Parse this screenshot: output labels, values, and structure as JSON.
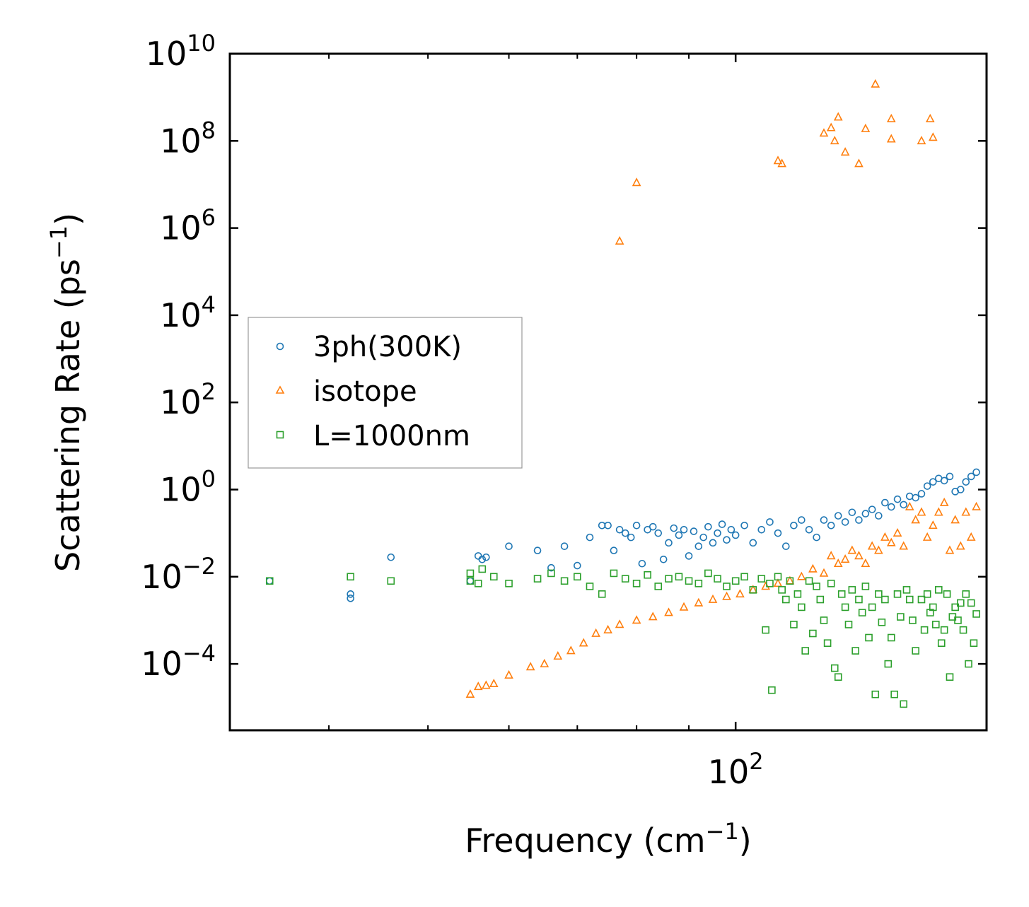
{
  "chart_data": {
    "type": "scatter",
    "title": "",
    "xlabel": "Frequency (cm",
    "xlabel_sup": "−1",
    "xlabel_tail": ")",
    "ylabel": "Scattering Rate (ps",
    "ylabel_sup": "−1",
    "ylabel_tail": ")",
    "xscale": "log",
    "yscale": "log",
    "xlim": [
      32,
      176
    ],
    "ylim": [
      3e-06,
      10000000000.0
    ],
    "x_major_ticks": [
      {
        "value": 100,
        "base": "10",
        "exp": "2"
      }
    ],
    "y_major_ticks": [
      {
        "value": 0.0001,
        "base": "10",
        "exp": "−4"
      },
      {
        "value": 0.01,
        "base": "10",
        "exp": "−2"
      },
      {
        "value": 1,
        "base": "10",
        "exp": "0"
      },
      {
        "value": 100,
        "base": "10",
        "exp": "2"
      },
      {
        "value": 10000.0,
        "base": "10",
        "exp": "4"
      },
      {
        "value": 1000000.0,
        "base": "10",
        "exp": "6"
      },
      {
        "value": 100000000.0,
        "base": "10",
        "exp": "8"
      },
      {
        "value": 10000000000.0,
        "base": "10",
        "exp": "10"
      }
    ],
    "legend_location": "center-left",
    "series": [
      {
        "name": "3ph(300K)",
        "marker": "circle",
        "color": "#1f77b4",
        "points": [
          [
            35,
            0.008
          ],
          [
            42,
            0.004
          ],
          [
            42,
            0.0032
          ],
          [
            46,
            0.028
          ],
          [
            55,
            0.008
          ],
          [
            56,
            0.03
          ],
          [
            56.5,
            0.025
          ],
          [
            57,
            0.028
          ],
          [
            60,
            0.05
          ],
          [
            64,
            0.04
          ],
          [
            66,
            0.016
          ],
          [
            68,
            0.05
          ],
          [
            70,
            0.018
          ],
          [
            72,
            0.08
          ],
          [
            74,
            0.15
          ],
          [
            75,
            0.15
          ],
          [
            76,
            0.04
          ],
          [
            77,
            0.12
          ],
          [
            78,
            0.1
          ],
          [
            79,
            0.08
          ],
          [
            80,
            0.15
          ],
          [
            81,
            0.02
          ],
          [
            82,
            0.12
          ],
          [
            83,
            0.14
          ],
          [
            84,
            0.1
          ],
          [
            85,
            0.025
          ],
          [
            86,
            0.06
          ],
          [
            87,
            0.13
          ],
          [
            88,
            0.09
          ],
          [
            89,
            0.12
          ],
          [
            90,
            0.03
          ],
          [
            91,
            0.11
          ],
          [
            92,
            0.05
          ],
          [
            93,
            0.08
          ],
          [
            94,
            0.14
          ],
          [
            95,
            0.06
          ],
          [
            96,
            0.1
          ],
          [
            97,
            0.16
          ],
          [
            98,
            0.07
          ],
          [
            99,
            0.12
          ],
          [
            100,
            0.09
          ],
          [
            102,
            0.15
          ],
          [
            104,
            0.06
          ],
          [
            106,
            0.12
          ],
          [
            108,
            0.18
          ],
          [
            110,
            0.1
          ],
          [
            112,
            0.05
          ],
          [
            114,
            0.15
          ],
          [
            116,
            0.2
          ],
          [
            118,
            0.12
          ],
          [
            120,
            0.08
          ],
          [
            122,
            0.2
          ],
          [
            124,
            0.15
          ],
          [
            126,
            0.25
          ],
          [
            128,
            0.18
          ],
          [
            130,
            0.3
          ],
          [
            132,
            0.2
          ],
          [
            134,
            0.28
          ],
          [
            136,
            0.35
          ],
          [
            138,
            0.25
          ],
          [
            140,
            0.5
          ],
          [
            142,
            0.4
          ],
          [
            144,
            0.6
          ],
          [
            146,
            0.45
          ],
          [
            148,
            0.7
          ],
          [
            150,
            0.65
          ],
          [
            152,
            0.8
          ],
          [
            154,
            1.2
          ],
          [
            156,
            1.5
          ],
          [
            158,
            1.8
          ],
          [
            160,
            1.6
          ],
          [
            162,
            2.0
          ],
          [
            164,
            0.9
          ],
          [
            166,
            1.0
          ],
          [
            168,
            1.5
          ],
          [
            170,
            2.0
          ],
          [
            172,
            2.5
          ]
        ]
      },
      {
        "name": "isotope",
        "marker": "triangle",
        "color": "#ff7f0e",
        "points": [
          [
            55,
            2e-05
          ],
          [
            56,
            3e-05
          ],
          [
            57,
            3.2e-05
          ],
          [
            58,
            3.5e-05
          ],
          [
            60,
            5.5e-05
          ],
          [
            63,
            8.5e-05
          ],
          [
            65,
            0.0001
          ],
          [
            67,
            0.00015
          ],
          [
            69,
            0.0002
          ],
          [
            71,
            0.0003
          ],
          [
            73,
            0.0005
          ],
          [
            75,
            0.0006
          ],
          [
            77,
            0.0008
          ],
          [
            80,
            0.001
          ],
          [
            83,
            0.0012
          ],
          [
            86,
            0.0015
          ],
          [
            89,
            0.002
          ],
          [
            92,
            0.0025
          ],
          [
            95,
            0.003
          ],
          [
            98,
            0.0035
          ],
          [
            101,
            0.004
          ],
          [
            104,
            0.005
          ],
          [
            107,
            0.006
          ],
          [
            110,
            0.007
          ],
          [
            113,
            0.008
          ],
          [
            116,
            0.01
          ],
          [
            119,
            0.015
          ],
          [
            122,
            0.012
          ],
          [
            124,
            0.03
          ],
          [
            126,
            0.02
          ],
          [
            128,
            0.025
          ],
          [
            130,
            0.04
          ],
          [
            132,
            0.03
          ],
          [
            134,
            0.02
          ],
          [
            136,
            0.05
          ],
          [
            138,
            0.04
          ],
          [
            140,
            0.08
          ],
          [
            142,
            0.06
          ],
          [
            144,
            0.1
          ],
          [
            146,
            0.05
          ],
          [
            148,
            0.4
          ],
          [
            150,
            0.2
          ],
          [
            152,
            0.3
          ],
          [
            154,
            0.08
          ],
          [
            156,
            0.15
          ],
          [
            158,
            0.3
          ],
          [
            160,
            0.5
          ],
          [
            162,
            0.04
          ],
          [
            164,
            0.2
          ],
          [
            166,
            0.05
          ],
          [
            168,
            0.3
          ],
          [
            170,
            0.08
          ],
          [
            172,
            0.4
          ],
          [
            77,
            500000
          ],
          [
            80,
            11000000
          ],
          [
            110,
            35000000
          ],
          [
            111,
            30000000
          ],
          [
            122,
            150000000
          ],
          [
            124,
            200000000
          ],
          [
            125,
            100000000
          ],
          [
            126,
            350000000
          ],
          [
            128,
            55000000
          ],
          [
            132,
            30000000
          ],
          [
            134,
            190000000
          ],
          [
            137,
            2000000000
          ],
          [
            142,
            110000000
          ],
          [
            142,
            320000000
          ],
          [
            152,
            100000000
          ],
          [
            155,
            320000000
          ],
          [
            156,
            120000000
          ]
        ]
      },
      {
        "name": "L=1000nm",
        "marker": "square",
        "color": "#2ca02c",
        "points": [
          [
            35,
            0.008
          ],
          [
            42,
            0.01
          ],
          [
            46,
            0.008
          ],
          [
            55,
            0.008
          ],
          [
            55,
            0.012
          ],
          [
            56,
            0.007
          ],
          [
            56.5,
            0.015
          ],
          [
            58,
            0.01
          ],
          [
            60,
            0.007
          ],
          [
            64,
            0.009
          ],
          [
            66,
            0.012
          ],
          [
            68,
            0.008
          ],
          [
            70,
            0.01
          ],
          [
            72,
            0.006
          ],
          [
            74,
            0.004
          ],
          [
            76,
            0.012
          ],
          [
            78,
            0.009
          ],
          [
            80,
            0.007
          ],
          [
            82,
            0.011
          ],
          [
            84,
            0.006
          ],
          [
            86,
            0.009
          ],
          [
            88,
            0.01
          ],
          [
            90,
            0.008
          ],
          [
            92,
            0.007
          ],
          [
            94,
            0.012
          ],
          [
            96,
            0.009
          ],
          [
            98,
            0.006
          ],
          [
            100,
            0.008
          ],
          [
            102,
            0.01
          ],
          [
            104,
            0.005
          ],
          [
            106,
            0.009
          ],
          [
            107,
            0.0006
          ],
          [
            108,
            0.007
          ],
          [
            108.5,
            2.5e-05
          ],
          [
            110,
            0.01
          ],
          [
            111,
            0.005
          ],
          [
            112,
            0.003
          ],
          [
            113,
            0.008
          ],
          [
            114,
            0.0008
          ],
          [
            115,
            0.004
          ],
          [
            116,
            0.002
          ],
          [
            117,
            0.0002
          ],
          [
            118,
            0.008
          ],
          [
            119,
            0.0005
          ],
          [
            120,
            0.006
          ],
          [
            121,
            0.003
          ],
          [
            122,
            0.001
          ],
          [
            123,
            0.0003
          ],
          [
            124,
            0.007
          ],
          [
            125,
            8e-05
          ],
          [
            126,
            5e-05
          ],
          [
            127,
            0.004
          ],
          [
            128,
            0.002
          ],
          [
            129,
            0.0008
          ],
          [
            130,
            0.005
          ],
          [
            131,
            0.0002
          ],
          [
            132,
            0.003
          ],
          [
            133,
            0.0015
          ],
          [
            134,
            0.006
          ],
          [
            135,
            0.0004
          ],
          [
            136,
            0.002
          ],
          [
            137,
            2e-05
          ],
          [
            138,
            0.004
          ],
          [
            139,
            0.0009
          ],
          [
            140,
            0.003
          ],
          [
            141,
            0.0001
          ],
          [
            142,
            0.0004
          ],
          [
            143,
            2e-05
          ],
          [
            144,
            0.004
          ],
          [
            145,
            0.0012
          ],
          [
            146,
            1.2e-05
          ],
          [
            147,
            0.005
          ],
          [
            148,
            0.003
          ],
          [
            149,
            0.001
          ],
          [
            150,
            0.0002
          ],
          [
            152,
            0.003
          ],
          [
            153,
            0.0006
          ],
          [
            154,
            0.004
          ],
          [
            155,
            0.0015
          ],
          [
            156,
            0.002
          ],
          [
            157,
            0.0008
          ],
          [
            158,
            0.005
          ],
          [
            159,
            0.0003
          ],
          [
            160,
            0.0006
          ],
          [
            161,
            0.004
          ],
          [
            162,
            5e-05
          ],
          [
            163,
            0.0012
          ],
          [
            164,
            0.002
          ],
          [
            165,
            0.001
          ],
          [
            166,
            0.0025
          ],
          [
            167,
            0.0006
          ],
          [
            168,
            0.004
          ],
          [
            169,
            0.0001
          ],
          [
            170,
            0.0025
          ],
          [
            171,
            0.0003
          ],
          [
            172,
            0.0014
          ]
        ]
      }
    ]
  }
}
